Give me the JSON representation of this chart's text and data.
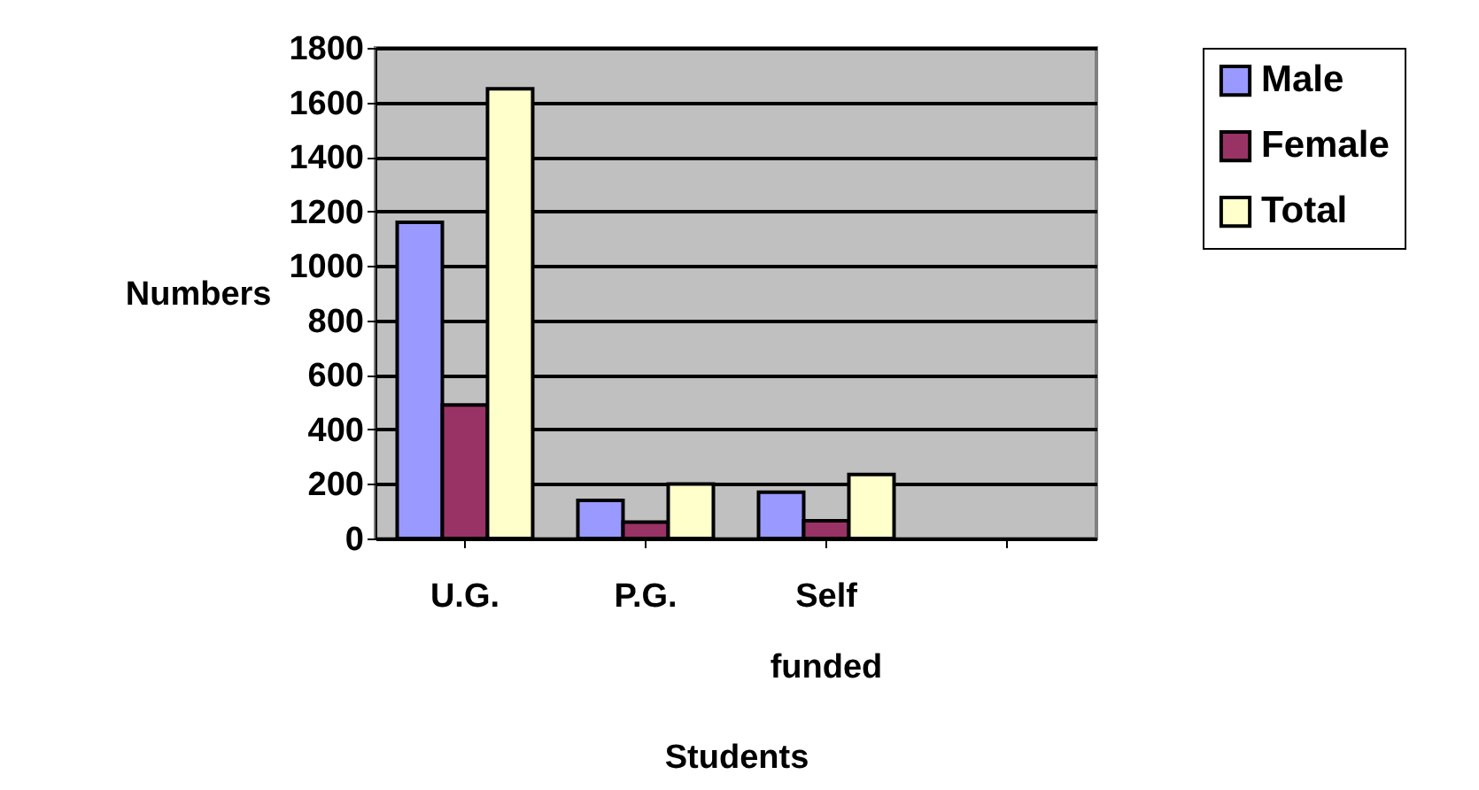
{
  "chart_data": {
    "type": "bar",
    "xlabel": "Students",
    "ylabel": "Numbers",
    "categories": [
      "U.G.",
      "P.G.",
      "Self funded",
      null
    ],
    "series": [
      {
        "name": "Male",
        "color": "#9999ff",
        "values": [
          1160,
          140,
          170,
          null
        ]
      },
      {
        "name": "Female",
        "color": "#993366",
        "values": [
          490,
          60,
          65,
          null
        ]
      },
      {
        "name": "Total",
        "color": "#ffffcc",
        "values": [
          1650,
          200,
          235,
          null
        ]
      }
    ],
    "ylim": [
      0,
      1800
    ],
    "yticks": [
      0,
      200,
      400,
      600,
      800,
      1000,
      1200,
      1400,
      1600,
      1800
    ],
    "grid": "y",
    "legend": "right"
  }
}
